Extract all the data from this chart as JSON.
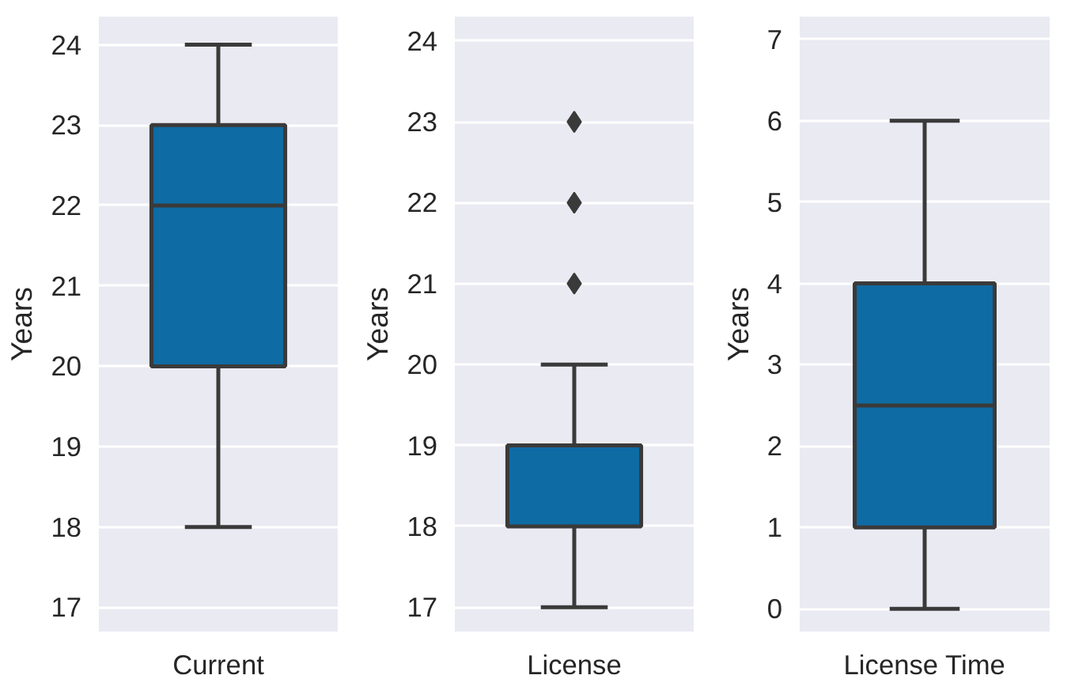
{
  "chart_data": [
    {
      "type": "box",
      "categories": [
        "Current"
      ],
      "ylabel": "Years",
      "ylim": [
        16.7,
        24.35
      ],
      "yticks": [
        17,
        18,
        19,
        20,
        21,
        22,
        23,
        24
      ],
      "grid": "y",
      "color": "#0f6ba3",
      "boxes": [
        {
          "low": 18,
          "q1": 20,
          "median": 22,
          "q3": 23,
          "high": 24
        }
      ]
    },
    {
      "type": "box",
      "categories": [
        "License"
      ],
      "ylabel": "Years",
      "ylim": [
        16.7,
        24.3
      ],
      "yticks": [
        17,
        18,
        19,
        20,
        21,
        22,
        23,
        24
      ],
      "grid": "y",
      "color": "#0f6ba3",
      "boxes": [
        {
          "low": 17,
          "q1": 18,
          "median": 19,
          "q3": 19,
          "high": 20,
          "outliers": [
            21,
            22,
            23
          ]
        }
      ]
    },
    {
      "type": "box",
      "categories": [
        "License Time"
      ],
      "ylabel": "Years",
      "ylim": [
        -0.28,
        7.28
      ],
      "yticks": [
        0,
        1,
        2,
        3,
        4,
        5,
        6,
        7
      ],
      "grid": "y",
      "color": "#0f6ba3",
      "boxes": [
        {
          "low": 0,
          "q1": 1,
          "median": 2.5,
          "q3": 4,
          "high": 6
        }
      ]
    }
  ]
}
